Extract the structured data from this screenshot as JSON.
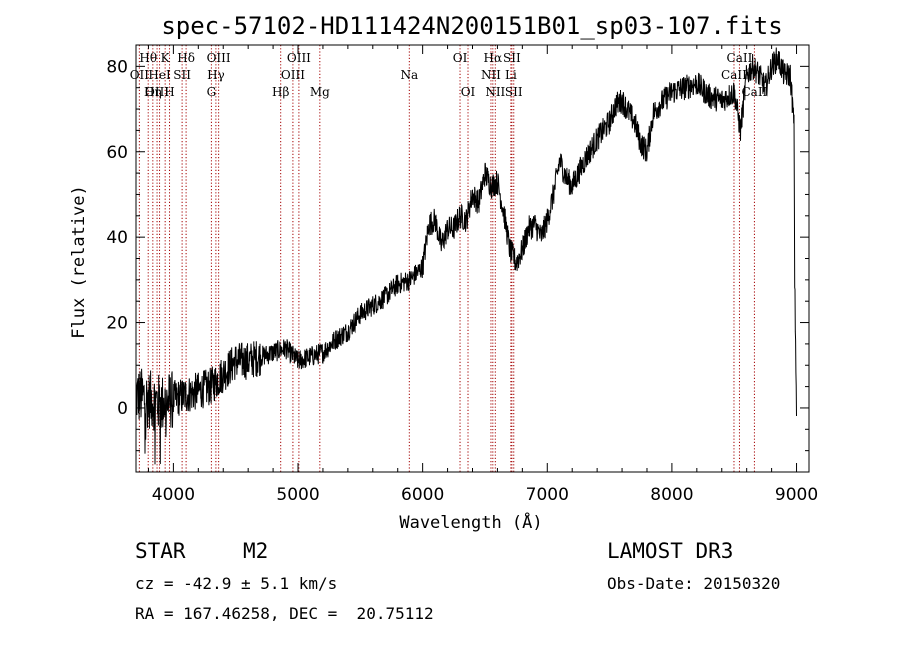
{
  "chart_data": {
    "type": "line",
    "title": "spec-57102-HD111424N200151B01_sp03-107.fits",
    "xlabel": "Wavelength (Å)",
    "ylabel": "Flux (relative)",
    "xlim": [
      3700,
      9100
    ],
    "ylim": [
      -15,
      85
    ],
    "xticks": [
      4000,
      5000,
      6000,
      7000,
      8000,
      9000
    ],
    "yticks": [
      0,
      20,
      40,
      60,
      80
    ],
    "spectrum_anchors": {
      "x": [
        3700,
        3800,
        3900,
        4000,
        4100,
        4200,
        4300,
        4400,
        4500,
        4600,
        4700,
        4800,
        4900,
        5000,
        5100,
        5200,
        5300,
        5400,
        5500,
        5600,
        5700,
        5800,
        5900,
        6000,
        6050,
        6100,
        6150,
        6200,
        6250,
        6300,
        6350,
        6400,
        6450,
        6500,
        6550,
        6600,
        6650,
        6700,
        6750,
        6800,
        6850,
        6900,
        6950,
        7000,
        7050,
        7100,
        7150,
        7200,
        7300,
        7400,
        7500,
        7550,
        7600,
        7700,
        7750,
        7800,
        7850,
        7900,
        8000,
        8100,
        8200,
        8300,
        8400,
        8500,
        8550,
        8600,
        8650,
        8700,
        8750,
        8800,
        8850,
        8900,
        8950,
        8980,
        8985,
        8990,
        9000
      ],
      "y": [
        3,
        2,
        1,
        2,
        3,
        4,
        5,
        8,
        11,
        11,
        12,
        13,
        14,
        11,
        12,
        13,
        16,
        18,
        22,
        24,
        26,
        29,
        30,
        33,
        43,
        44,
        38,
        42,
        42,
        45,
        44,
        50,
        48,
        55,
        52,
        53,
        46,
        37,
        34,
        37,
        42,
        43,
        40,
        44,
        50,
        58,
        54,
        52,
        58,
        63,
        67,
        71,
        72,
        67,
        62,
        60,
        69,
        71,
        74,
        75,
        76,
        73,
        72,
        74,
        65,
        78,
        80,
        78,
        75,
        80,
        82,
        78,
        78,
        66,
        30,
        20,
        0
      ]
    },
    "spectral_lines": [
      {
        "label": "Hθ",
        "wavelength": 3798,
        "row": 0
      },
      {
        "label": "OII",
        "wavelength": 3727,
        "row": 1
      },
      {
        "label": "OIII",
        "wavelength": 3869,
        "row": 2
      },
      {
        "label": "K",
        "wavelength": 3934,
        "row": 0
      },
      {
        "label": "HeI",
        "wavelength": 3889,
        "row": 1
      },
      {
        "label": "Hη",
        "wavelength": 3835,
        "row": 2
      },
      {
        "label": "Hδ",
        "wavelength": 4102,
        "row": 0
      },
      {
        "label": "SII",
        "wavelength": 4070,
        "row": 1
      },
      {
        "label": "H",
        "wavelength": 3969,
        "row": 2
      },
      {
        "label": "OIII",
        "wavelength": 4363,
        "row": 0
      },
      {
        "label": "Hγ",
        "wavelength": 4341,
        "row": 1
      },
      {
        "label": "G",
        "wavelength": 4305,
        "row": 2
      },
      {
        "label": "OIII",
        "wavelength": 5007,
        "row": 0
      },
      {
        "label": "OIII",
        "wavelength": 4959,
        "row": 1
      },
      {
        "label": "Hβ",
        "wavelength": 4861,
        "row": 2
      },
      {
        "label": "Mg",
        "wavelength": 5175,
        "row": 2
      },
      {
        "label": "Na",
        "wavelength": 5893,
        "row": 1
      },
      {
        "label": "OI",
        "wavelength": 6300,
        "row": 0
      },
      {
        "label": "OI",
        "wavelength": 6364,
        "row": 2
      },
      {
        "label": "Hα",
        "wavelength": 6563,
        "row": 0
      },
      {
        "label": "NII",
        "wavelength": 6548,
        "row": 1
      },
      {
        "label": "NII",
        "wavelength": 6583,
        "row": 2
      },
      {
        "label": "SII",
        "wavelength": 6716,
        "row": 0
      },
      {
        "label": "Li",
        "wavelength": 6708,
        "row": 1
      },
      {
        "label": "SII",
        "wavelength": 6731,
        "row": 2
      },
      {
        "label": "CaII",
        "wavelength": 8542,
        "row": 0
      },
      {
        "label": "CaII",
        "wavelength": 8498,
        "row": 1
      },
      {
        "label": "CaII",
        "wavelength": 8662,
        "row": 2
      }
    ]
  },
  "info": {
    "class": "STAR",
    "subclass": "M2",
    "survey": "LAMOST DR3",
    "cz": "cz = -42.9 ± 5.1 km/s",
    "obs_date": "Obs-Date: 20150320",
    "coords": "RA = 167.46258, DEC =  20.75112"
  }
}
